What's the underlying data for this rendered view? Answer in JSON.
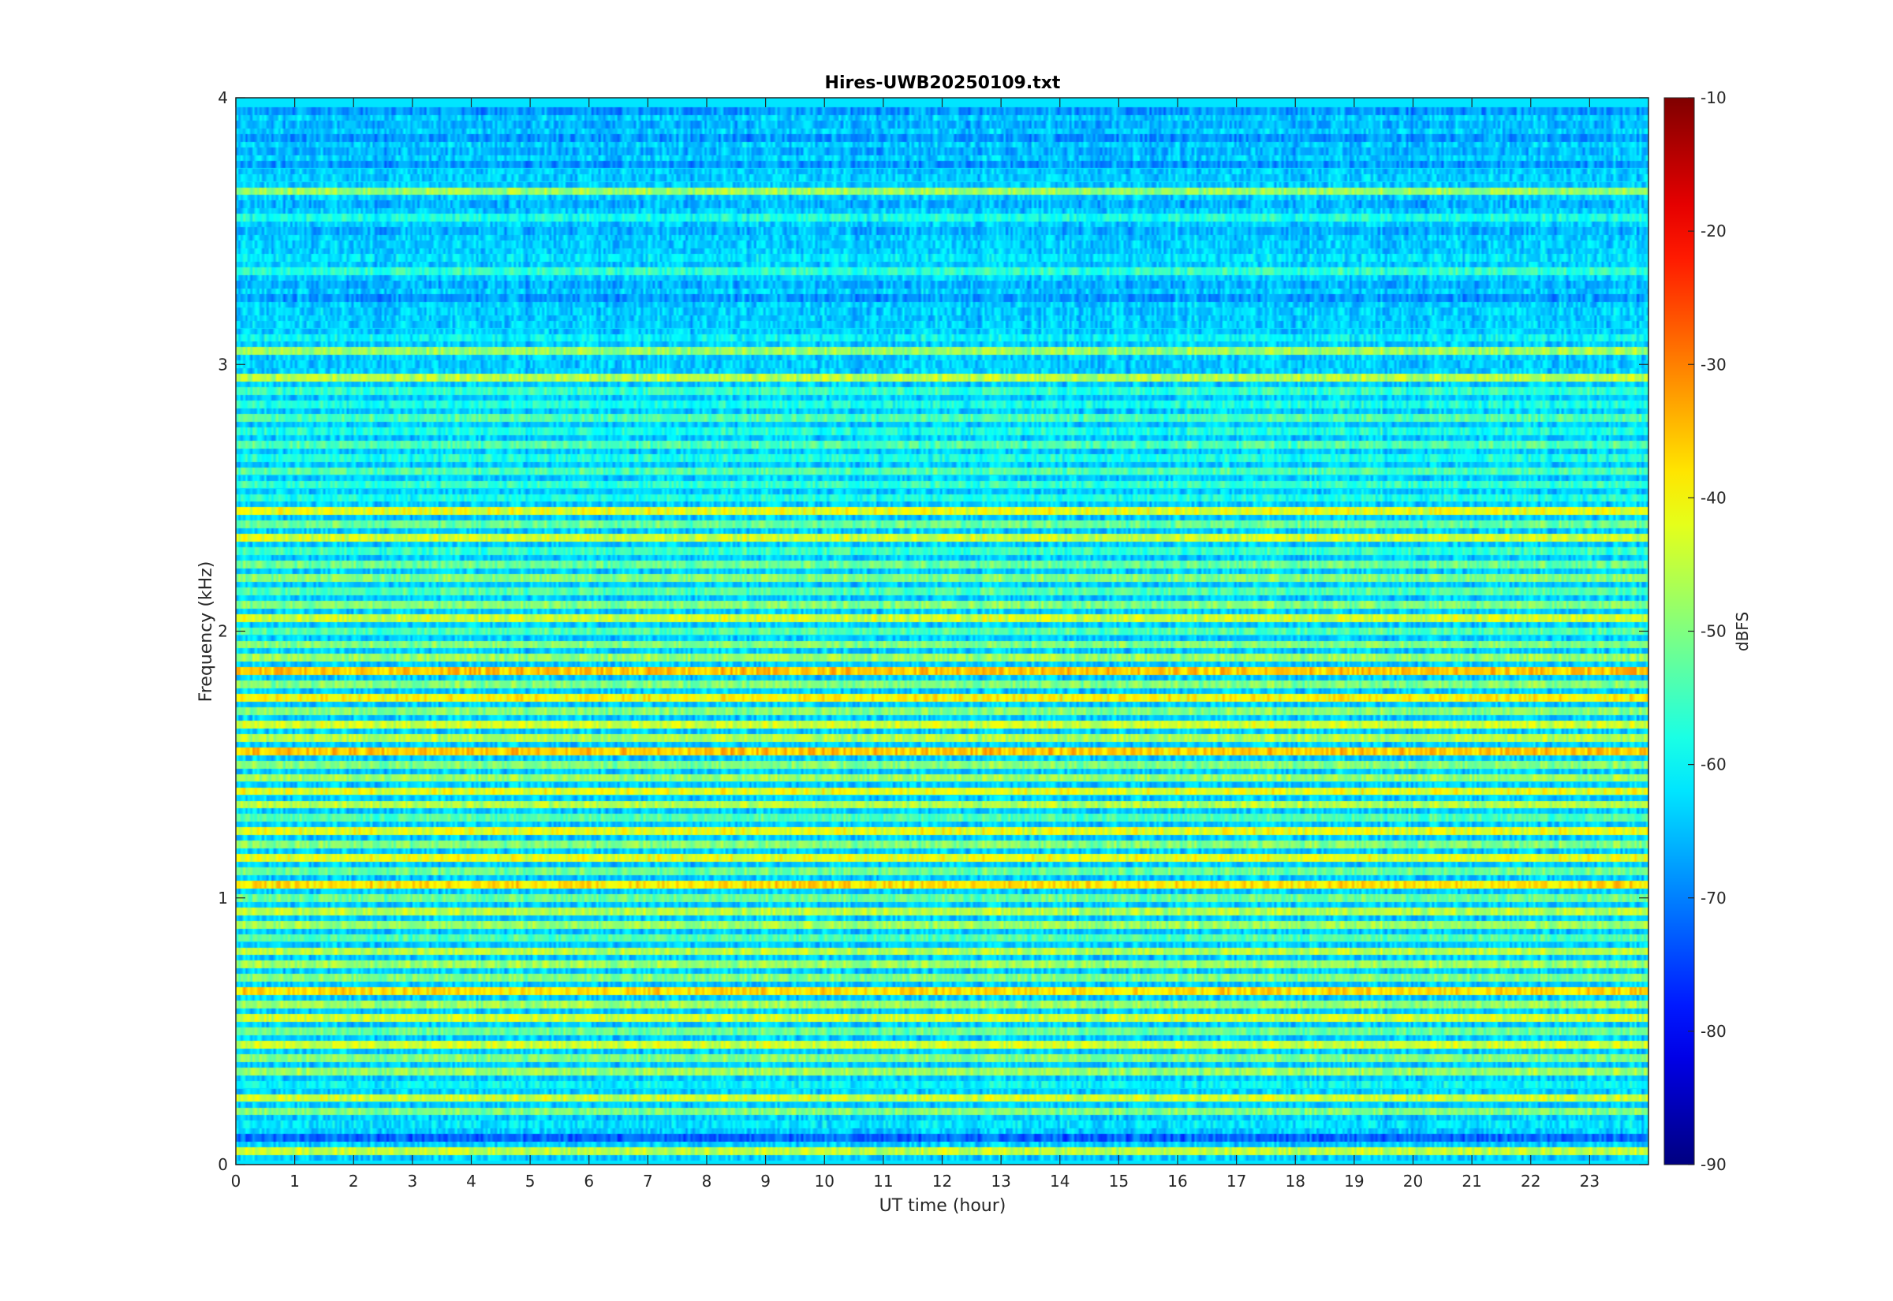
{
  "chart_data": {
    "type": "heatmap",
    "title": "Hires-UWB20250109.txt",
    "xlabel": "UT time (hour)",
    "ylabel": "Frequency (kHz)",
    "colorbar_label": "dBFS",
    "xlim": [
      0,
      24
    ],
    "ylim": [
      0,
      4
    ],
    "clim": [
      -90,
      -10
    ],
    "colormap": "jet",
    "x_ticks": [
      0,
      1,
      2,
      3,
      4,
      5,
      6,
      7,
      8,
      9,
      10,
      11,
      12,
      13,
      14,
      15,
      16,
      17,
      18,
      19,
      20,
      21,
      22,
      23
    ],
    "y_ticks": [
      0,
      1,
      2,
      3,
      4
    ],
    "colorbar_ticks": [
      -90,
      -80,
      -70,
      -60,
      -50,
      -40,
      -30,
      -20,
      -10
    ],
    "band_frequencies_khz": [
      0.05,
      0.1,
      0.15,
      0.2,
      0.25,
      0.3,
      0.35,
      0.4,
      0.45,
      0.5,
      0.55,
      0.6,
      0.65,
      0.7,
      0.75,
      0.8,
      0.85,
      0.9,
      0.95,
      1.0,
      1.05,
      1.1,
      1.15,
      1.2,
      1.25,
      1.3,
      1.35,
      1.4,
      1.45,
      1.5,
      1.55,
      1.6,
      1.65,
      1.7,
      1.75,
      1.8,
      1.85,
      1.9,
      1.95,
      2.0,
      2.05,
      2.1,
      2.15,
      2.2,
      2.25,
      2.3,
      2.35,
      2.4,
      2.45,
      2.5,
      2.55,
      2.6,
      2.65,
      2.7,
      2.75,
      2.8,
      2.85,
      2.9,
      2.95,
      3.0,
      3.05,
      3.1,
      3.15,
      3.2,
      3.25,
      3.3,
      3.35,
      3.4,
      3.45,
      3.5,
      3.55,
      3.6,
      3.65,
      3.7,
      3.75,
      3.8,
      3.85,
      3.9,
      3.95
    ],
    "band_levels_dbfs": [
      -45,
      -72,
      -62,
      -50,
      -44,
      -60,
      -48,
      -50,
      -44,
      -52,
      -44,
      -48,
      -38,
      -50,
      -48,
      -46,
      -54,
      -48,
      -46,
      -52,
      -38,
      -52,
      -42,
      -50,
      -42,
      -54,
      -46,
      -42,
      -48,
      -50,
      -36,
      -46,
      -44,
      -50,
      -40,
      -50,
      -36,
      -48,
      -50,
      -54,
      -44,
      -50,
      -54,
      -50,
      -52,
      -56,
      -44,
      -52,
      -42,
      -58,
      -56,
      -54,
      -58,
      -54,
      -58,
      -54,
      -58,
      -56,
      -46,
      -64,
      -48,
      -60,
      -64,
      -64,
      -68,
      -66,
      -56,
      -62,
      -64,
      -66,
      -58,
      -66,
      -48,
      -64,
      -68,
      -66,
      -68,
      -66,
      -68
    ]
  },
  "colors": {
    "background": "#ffffff",
    "axis": "#262626"
  }
}
